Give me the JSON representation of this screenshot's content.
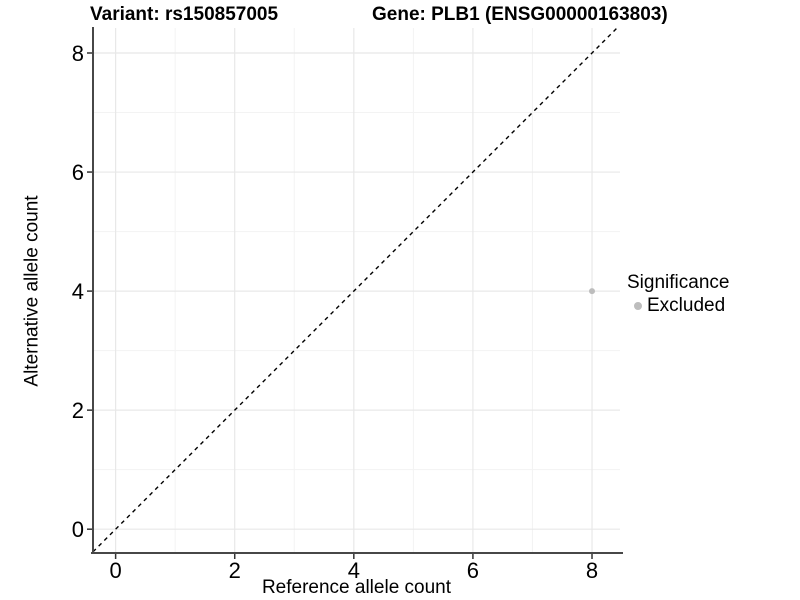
{
  "title": {
    "left": "Variant: rs150857005",
    "right": "Gene: PLB1 (ENSG00000163803)"
  },
  "chart_data": {
    "type": "scatter",
    "title": "Variant: rs150857005   Gene: PLB1 (ENSG00000163803)",
    "xlabel": "Reference allele count",
    "ylabel": "Alternative allele count",
    "xlim": [
      -0.38,
      8.47
    ],
    "ylim": [
      -0.4,
      8.42
    ],
    "x_ticks": [
      0,
      2,
      4,
      6,
      8
    ],
    "y_ticks": [
      0,
      2,
      4,
      6,
      8
    ],
    "x_minor_ticks": [
      1,
      3,
      5,
      7
    ],
    "y_minor_ticks": [
      1,
      3,
      5,
      7
    ],
    "grid": "on",
    "identity_line": {
      "equation": "y = x",
      "style": "dashed",
      "color": "#000000"
    },
    "points": [
      {
        "x": 8,
        "y": 4,
        "group": "Excluded",
        "color": "#bdbdbd"
      }
    ],
    "legend": {
      "title": "Significance",
      "position": "right",
      "items": [
        {
          "label": "Excluded",
          "color": "#bdbdbd",
          "marker": "circle"
        }
      ]
    }
  },
  "colors": {
    "background": "#ffffff",
    "grid_major": "#e8e8e8",
    "grid_minor": "#f3f3f3",
    "axis_line": "#474747",
    "tick_mark": "#333333",
    "tick_label": "#000000",
    "point": "#bdbdbd"
  }
}
